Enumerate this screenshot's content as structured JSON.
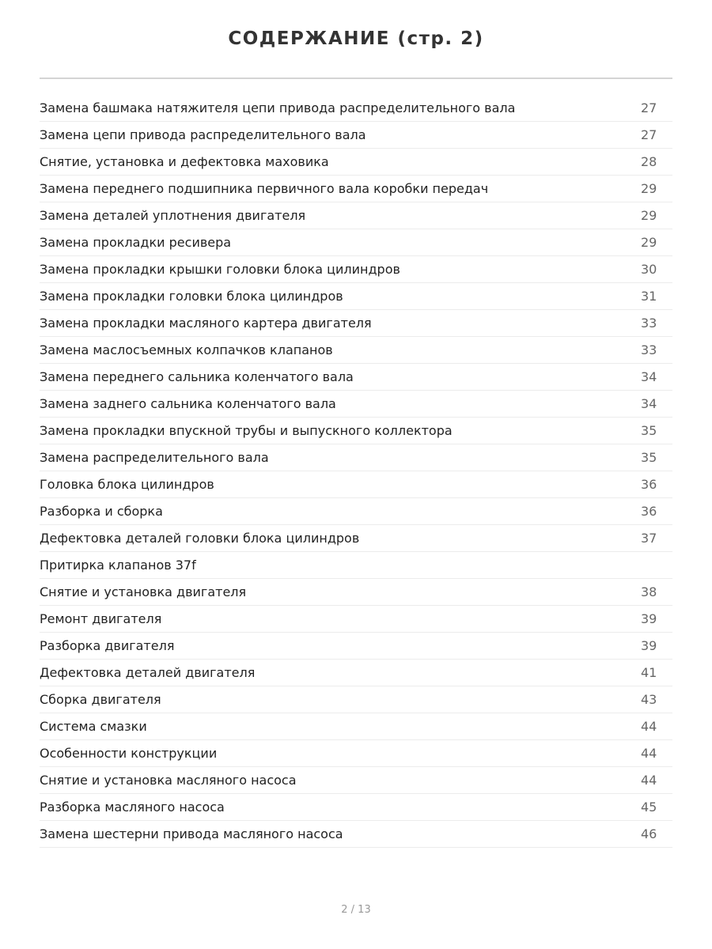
{
  "header": {
    "title": "СОДЕРЖАНИЕ (стр. 2)"
  },
  "entries": [
    {
      "title": "Замена башмака натяжителя цепи привода распределительного вала",
      "page": "27"
    },
    {
      "title": "Замена цепи привода распределительного вала",
      "page": "27"
    },
    {
      "title": "Снятие, установка и дефектовка маховика",
      "page": "28"
    },
    {
      "title": "Замена переднего подшипника первичного вала коробки передач",
      "page": "29"
    },
    {
      "title": "Замена деталей уплотнения двигателя",
      "page": "29"
    },
    {
      "title": "Замена прокладки ресивера",
      "page": "29"
    },
    {
      "title": "Замена прокладки крышки головки блока цилиндров",
      "page": "30"
    },
    {
      "title": "Замена прокладки головки блока цилиндров",
      "page": "31"
    },
    {
      "title": "Замена прокладки масляного картера двигателя",
      "page": "33"
    },
    {
      "title": "Замена маслосъемных колпачков клапанов",
      "page": "33"
    },
    {
      "title": "Замена переднего сальника коленчатого вала",
      "page": "34"
    },
    {
      "title": "Замена заднего сальника коленчатого вала",
      "page": "34"
    },
    {
      "title": "Замена прокладки впускной трубы и выпускного коллектора",
      "page": "35"
    },
    {
      "title": "Замена распределительного вала",
      "page": "35"
    },
    {
      "title": "Головка блока цилиндров",
      "page": "36"
    },
    {
      "title": "Разборка и сборка",
      "page": "36"
    },
    {
      "title": "Дефектовка деталей головки блока цилиндров",
      "page": "37"
    },
    {
      "title": "Притирка клапанов 37f"
    },
    {
      "title": "Снятие и установка двигателя",
      "page": "38"
    },
    {
      "title": "Ремонт двигателя",
      "page": "39"
    },
    {
      "title": "Разборка двигателя",
      "page": "39"
    },
    {
      "title": "Дефектовка деталей двигателя",
      "page": "41"
    },
    {
      "title": "Сборка двигателя",
      "page": "43"
    },
    {
      "title": "Система смазки",
      "page": "44"
    },
    {
      "title": "Особенности конструкции",
      "page": "44"
    },
    {
      "title": "Снятие и установка масляного насоса",
      "page": "44"
    },
    {
      "title": "Разборка масляного насоса",
      "page": "45"
    },
    {
      "title": "Замена шестерни привода масляного насоса",
      "page": "46"
    }
  ],
  "footer": {
    "page_indicator": "2 / 13"
  }
}
